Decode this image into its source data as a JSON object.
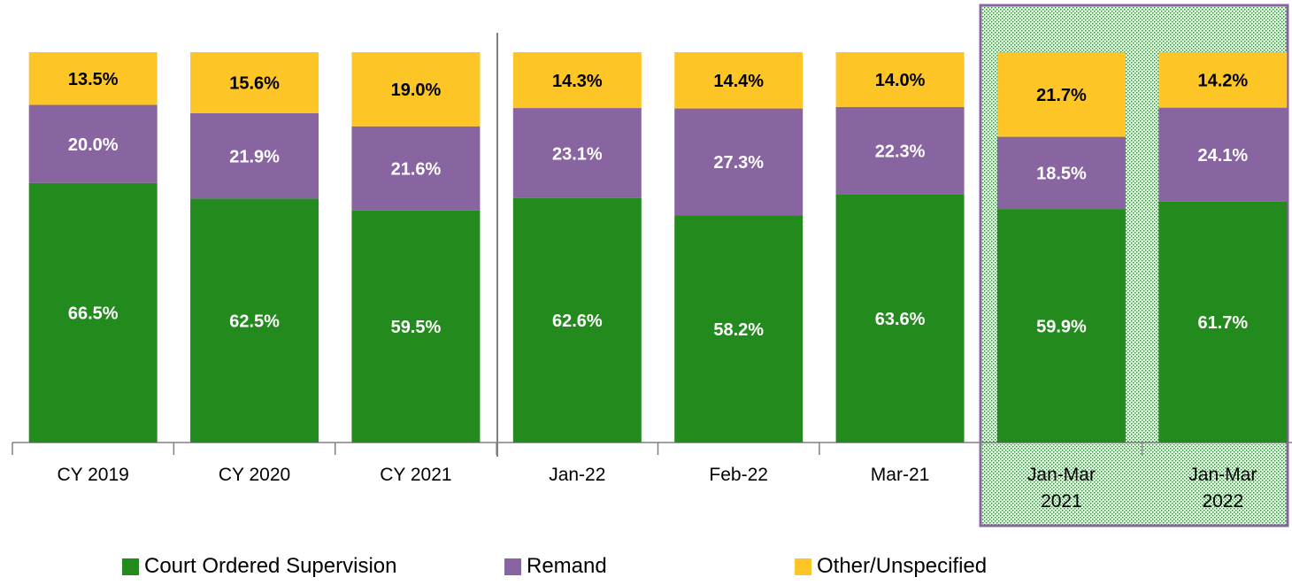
{
  "chart_data": {
    "type": "stacked-bar",
    "categories": [
      "CY 2019",
      "CY 2020",
      "CY 2021",
      "Jan-22",
      "Feb-22",
      "Mar-21",
      "Jan-Mar 2021",
      "Jan-Mar 2022"
    ],
    "series": [
      {
        "name": "Court Ordered Supervision",
        "color": "#238b1e",
        "values": [
          66.5,
          62.5,
          59.5,
          62.6,
          58.2,
          63.6,
          59.9,
          61.7
        ],
        "value_labels": [
          "66.5%",
          "62.5%",
          "59.5%",
          "62.6%",
          "58.2%",
          "63.6%",
          "59.9%",
          "61.7%"
        ]
      },
      {
        "name": "Remand",
        "color": "#8864a0",
        "values": [
          20.0,
          21.9,
          21.6,
          23.1,
          27.3,
          22.3,
          18.5,
          24.1
        ],
        "value_labels": [
          "20.0%",
          "21.9%",
          "21.6%",
          "23.1%",
          "27.3%",
          "22.3%",
          "18.5%",
          "24.1%"
        ]
      },
      {
        "name": "Other/Unspecified",
        "color": "#fdc626",
        "values": [
          13.5,
          15.6,
          19.0,
          14.3,
          14.4,
          14.0,
          21.7,
          14.2
        ],
        "value_labels": [
          "13.5%",
          "15.6%",
          "19.0%",
          "14.3%",
          "14.4%",
          "14.0%",
          "21.7%",
          "14.2%"
        ]
      }
    ]
  }
}
